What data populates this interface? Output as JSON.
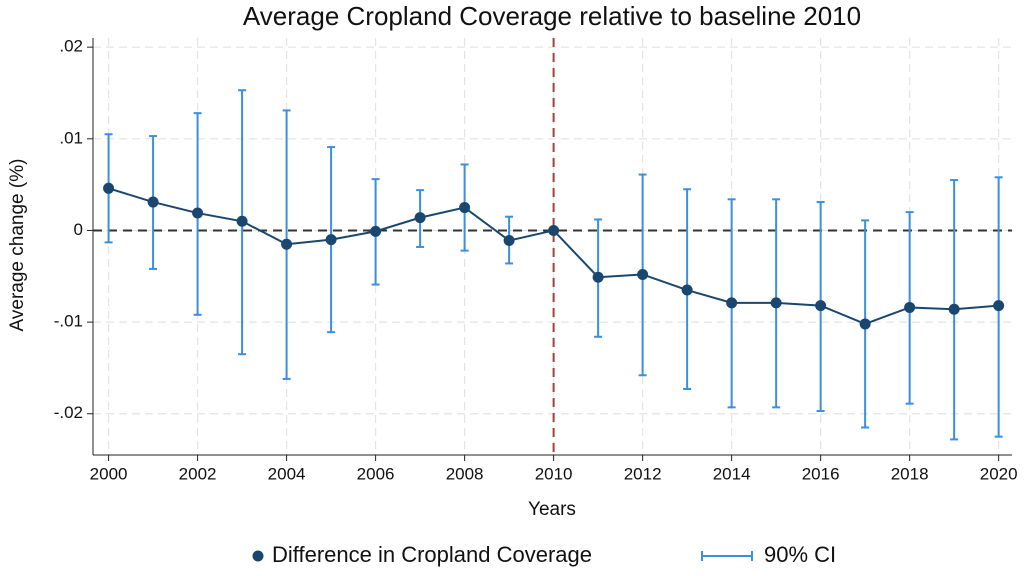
{
  "chart_data": {
    "type": "line",
    "title": "Average Cropland Coverage relative to baseline 2010",
    "x_label": "Years",
    "y_label": "Average change (%)",
    "x": [
      2000,
      2001,
      2002,
      2003,
      2004,
      2005,
      2006,
      2007,
      2008,
      2009,
      2010,
      2011,
      2012,
      2013,
      2014,
      2015,
      2016,
      2017,
      2018,
      2019,
      2020
    ],
    "series": [
      {
        "name": "Difference in Cropland Coverage",
        "color": "#1a476f",
        "values": [
          0.0046,
          0.0031,
          0.0019,
          0.001,
          -0.0015,
          -0.001,
          -0.0001,
          0.0014,
          0.0025,
          -0.0011,
          0,
          -0.0051,
          -0.0048,
          -0.0065,
          -0.0079,
          -0.0079,
          -0.0082,
          -0.0102,
          -0.0084,
          -0.0086,
          -0.0082
        ]
      }
    ],
    "interval": {
      "name": "90% CI",
      "color": "#3a8fe0",
      "lower": [
        -0.0013,
        -0.0042,
        -0.0092,
        -0.0135,
        -0.0162,
        -0.0111,
        -0.0059,
        -0.0018,
        -0.0022,
        -0.0036,
        null,
        -0.0116,
        -0.0158,
        -0.0173,
        -0.0193,
        -0.0193,
        -0.0197,
        -0.0215,
        -0.0189,
        -0.0228,
        -0.0225
      ],
      "upper": [
        0.0105,
        0.0103,
        0.0128,
        0.0153,
        0.0131,
        0.0091,
        0.0056,
        0.0044,
        0.0072,
        0.0015,
        null,
        0.0012,
        0.0061,
        0.0045,
        0.0034,
        0.0034,
        0.0031,
        0.0011,
        0.002,
        0.0055,
        0.0058
      ]
    },
    "xlim": [
      1999.65,
      2020.3
    ],
    "ylim": [
      -0.0245,
      0.021
    ],
    "xticks": [
      2000,
      2002,
      2004,
      2006,
      2008,
      2010,
      2012,
      2014,
      2016,
      2018,
      2020
    ],
    "yticks": [
      {
        "value": -0.02,
        "label": "-.02"
      },
      {
        "value": -0.01,
        "label": "-.01"
      },
      0,
      {
        "value": 0.01,
        "label": ".01"
      },
      {
        "value": 0.02,
        "label": ".02"
      }
    ],
    "grid": true,
    "vline": {
      "x": 2010,
      "color": "#a0403f"
    },
    "hline": {
      "y": 0,
      "color": "#333333"
    },
    "legend": "bottom"
  }
}
